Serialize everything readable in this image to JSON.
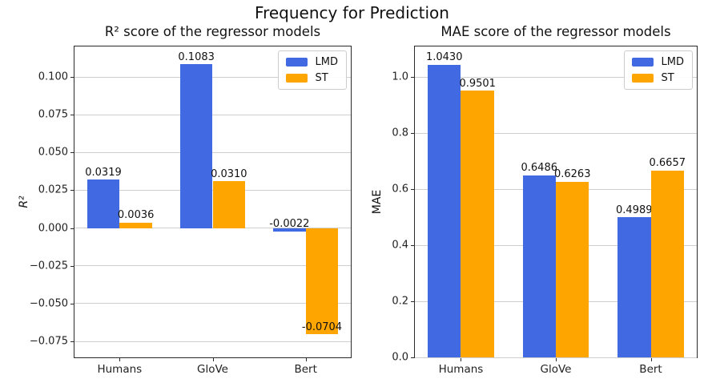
{
  "figure": {
    "suptitle": "Frequency for Prediction"
  },
  "colors": {
    "lmd": "#4169E1",
    "st": "#FFA500",
    "grid": "#cfcfcf",
    "spine": "#2a2a2a"
  },
  "chart_data": [
    {
      "type": "bar",
      "title": "R² score of the regressor models",
      "ylabel": "R²",
      "xlabel": "",
      "categories": [
        "Humans",
        "GloVe",
        "Bert"
      ],
      "series": [
        {
          "name": "LMD",
          "color": "#4169E1",
          "values": [
            0.0319,
            0.1083,
            -0.0022
          ],
          "bar_labels": [
            "0.0319",
            "0.1083",
            "-0.0022"
          ]
        },
        {
          "name": "ST",
          "color": "#FFA500",
          "values": [
            0.0036,
            0.031,
            -0.0704
          ],
          "bar_labels": [
            "0.0036",
            "0.0310",
            "-0.0704"
          ]
        }
      ],
      "ylim": [
        -0.0856,
        0.1202
      ],
      "xlim": [
        -0.485,
        2.485
      ],
      "bar_width": 0.35,
      "grid": true,
      "yticks": {
        "values": [
          0.1,
          0.075,
          0.05,
          0.025,
          0.0,
          -0.025,
          -0.05,
          -0.075
        ],
        "labels": [
          "0.100",
          "0.075",
          "0.050",
          "0.025",
          "0.000",
          "−0.025",
          "−0.050",
          "−0.075"
        ]
      },
      "legend": {
        "position": "upper right",
        "labels": [
          "LMD",
          "ST"
        ]
      }
    },
    {
      "type": "bar",
      "title": "MAE score of the regressor models",
      "ylabel": "MAE",
      "xlabel": "",
      "categories": [
        "Humans",
        "GloVe",
        "Bert"
      ],
      "series": [
        {
          "name": "LMD",
          "color": "#4169E1",
          "values": [
            1.043,
            0.6486,
            0.4989
          ],
          "bar_labels": [
            "1.0430",
            "0.6486",
            "0.4989"
          ]
        },
        {
          "name": "ST",
          "color": "#FFA500",
          "values": [
            0.9501,
            0.6263,
            0.6657
          ],
          "bar_labels": [
            "0.9501",
            "0.6263",
            "0.6657"
          ]
        }
      ],
      "ylim": [
        0,
        1.1086
      ],
      "xlim": [
        -0.485,
        2.485
      ],
      "bar_width": 0.35,
      "grid": true,
      "yticks": {
        "values": [
          1.0,
          0.8,
          0.6,
          0.4,
          0.2,
          0.0
        ],
        "labels": [
          "1.0",
          "0.8",
          "0.6",
          "0.4",
          "0.2",
          "0.0"
        ]
      },
      "legend": {
        "position": "upper right",
        "labels": [
          "LMD",
          "ST"
        ]
      }
    }
  ]
}
